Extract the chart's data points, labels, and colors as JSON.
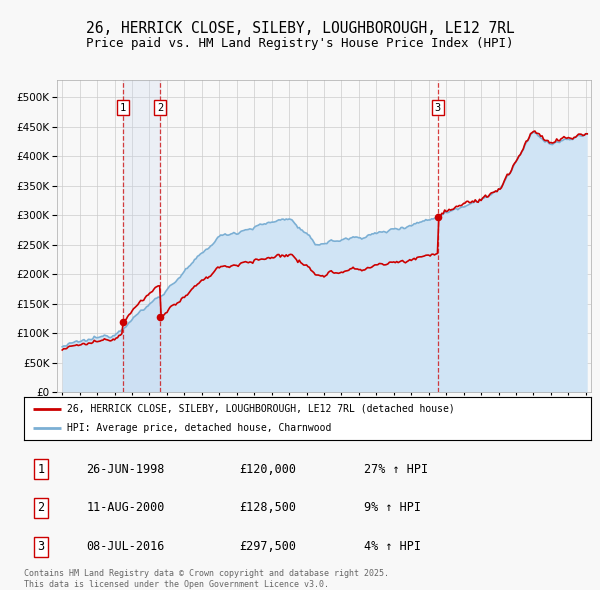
{
  "title": "26, HERRICK CLOSE, SILEBY, LOUGHBOROUGH, LE12 7RL",
  "subtitle": "Price paid vs. HM Land Registry's House Price Index (HPI)",
  "title_fontsize": 10.5,
  "subtitle_fontsize": 9,
  "ytick_values": [
    0,
    50000,
    100000,
    150000,
    200000,
    250000,
    300000,
    350000,
    400000,
    450000,
    500000
  ],
  "ylim": [
    0,
    530000
  ],
  "xlim_start": 1994.7,
  "xlim_end": 2025.3,
  "price_line_color": "#cc0000",
  "hpi_line_color": "#7bafd4",
  "hpi_fill_color": "#d0e4f5",
  "highlight_fill_color": "#c8d8ef",
  "grid_color": "#cccccc",
  "background_color": "#f8f8f8",
  "transactions": [
    {
      "date_year": 1998.48,
      "price": 120000,
      "label": "1"
    },
    {
      "date_year": 2000.61,
      "price": 128500,
      "label": "2"
    },
    {
      "date_year": 2016.52,
      "price": 297500,
      "label": "3"
    }
  ],
  "transaction_dates": [
    "26-JUN-1998",
    "11-AUG-2000",
    "08-JUL-2016"
  ],
  "transaction_prices": [
    "£120,000",
    "£128,500",
    "£297,500"
  ],
  "transaction_hpi": [
    "27% ↑ HPI",
    "9% ↑ HPI",
    "4% ↑ HPI"
  ],
  "legend_label_red": "26, HERRICK CLOSE, SILEBY, LOUGHBOROUGH, LE12 7RL (detached house)",
  "legend_label_blue": "HPI: Average price, detached house, Charnwood",
  "footer": "Contains HM Land Registry data © Crown copyright and database right 2025.\nThis data is licensed under the Open Government Licence v3.0."
}
